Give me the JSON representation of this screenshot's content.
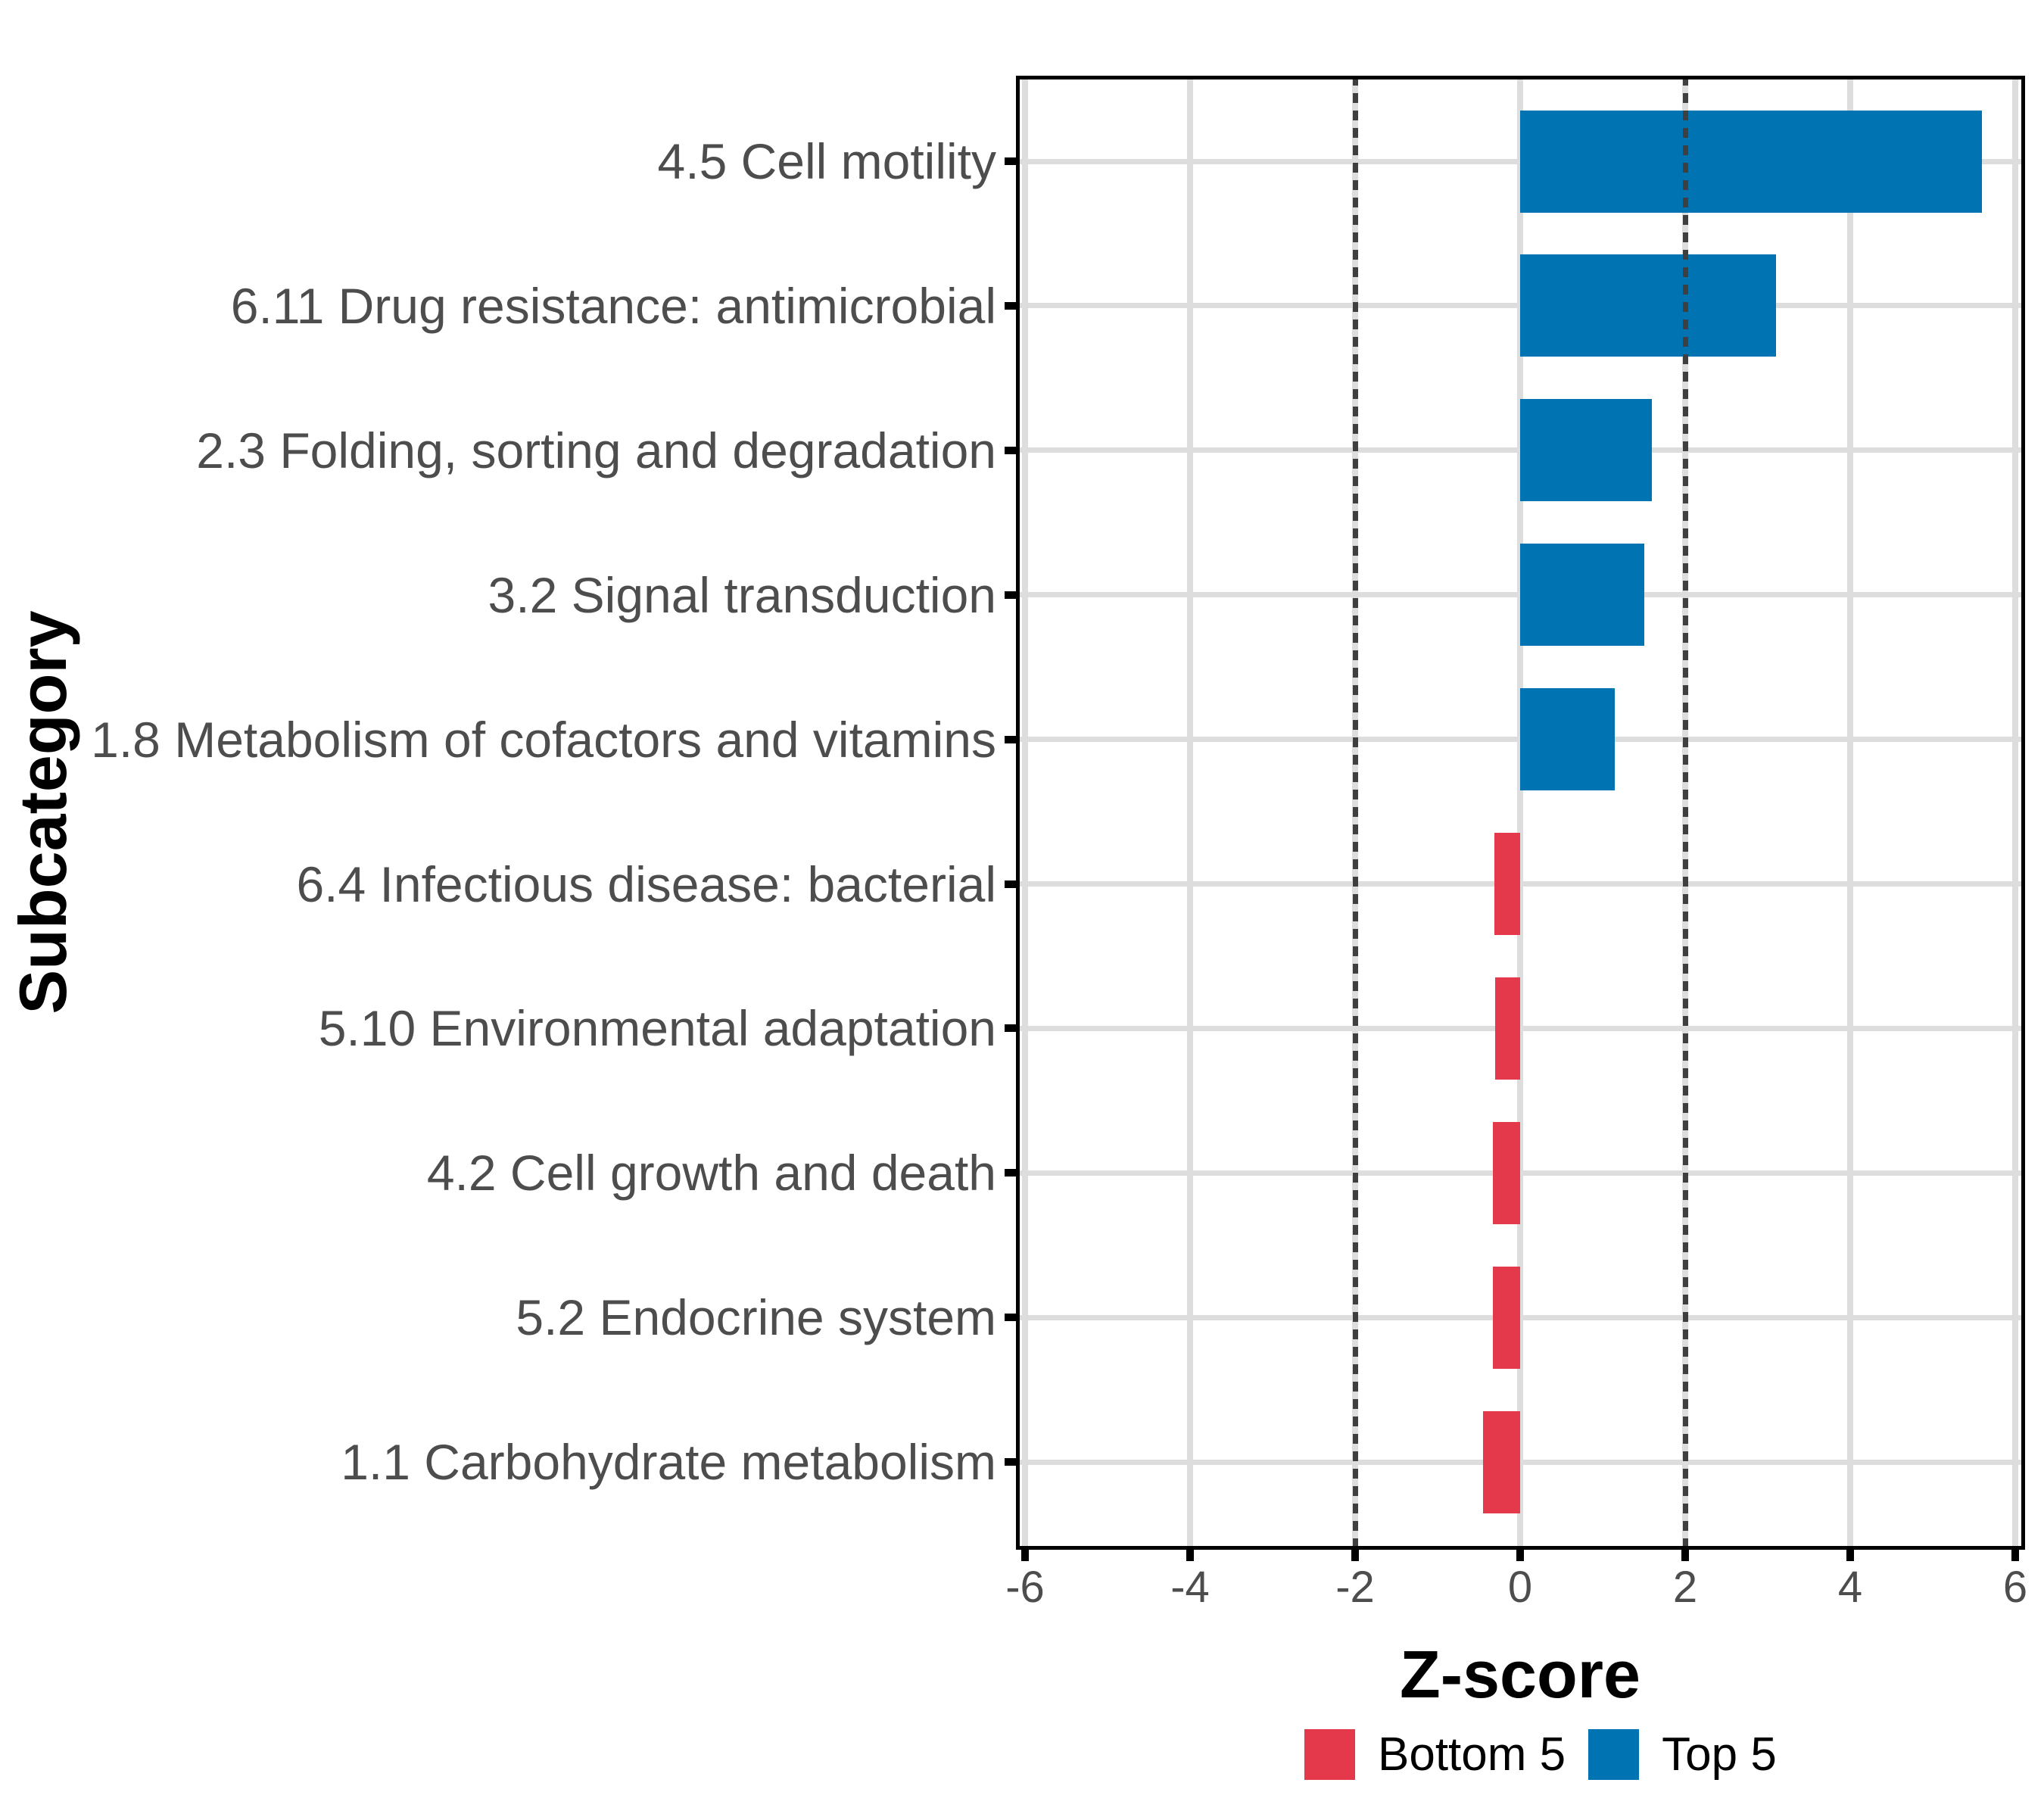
{
  "chart_data": {
    "type": "bar",
    "orientation": "horizontal",
    "title": "",
    "xlabel": "Z-score",
    "ylabel": "Subcategory",
    "xlim": [
      -6,
      6
    ],
    "xticks": [
      -6,
      -4,
      -2,
      0,
      2,
      4,
      6
    ],
    "reference_lines": [
      -2,
      2
    ],
    "grid": "major gridlines at x ticks and at each category row; no minor gridlines",
    "legend_position": "bottom",
    "categories": [
      "4.5 Cell motility",
      "6.11 Drug resistance: antimicrobial",
      "2.3 Folding, sorting and degradation",
      "3.2 Signal transduction",
      "1.8 Metabolism of cofactors and vitamins",
      "6.4 Infectious disease: bacterial",
      "5.10 Environmental adaptation",
      "4.2 Cell growth and death",
      "5.2 Endocrine system",
      "1.1 Carbohydrate metabolism"
    ],
    "values": [
      5.6,
      3.1,
      1.6,
      1.5,
      1.15,
      -0.31,
      -0.3,
      -0.33,
      -0.33,
      -0.45
    ],
    "groups": [
      "Top 5",
      "Top 5",
      "Top 5",
      "Top 5",
      "Top 5",
      "Bottom 5",
      "Bottom 5",
      "Bottom 5",
      "Bottom 5",
      "Bottom 5"
    ],
    "legend": [
      {
        "label": "Bottom 5",
        "color": "#e4394a"
      },
      {
        "label": "Top 5",
        "color": "#0073b2"
      }
    ]
  },
  "colors": {
    "top5_bar": "#0073b2",
    "bottom5_bar": "#e4394a",
    "gridline": "#dddddd",
    "reference_line": "#3f3f3f",
    "axis_text": "#4d4d4d",
    "panel_border": "#000000"
  }
}
